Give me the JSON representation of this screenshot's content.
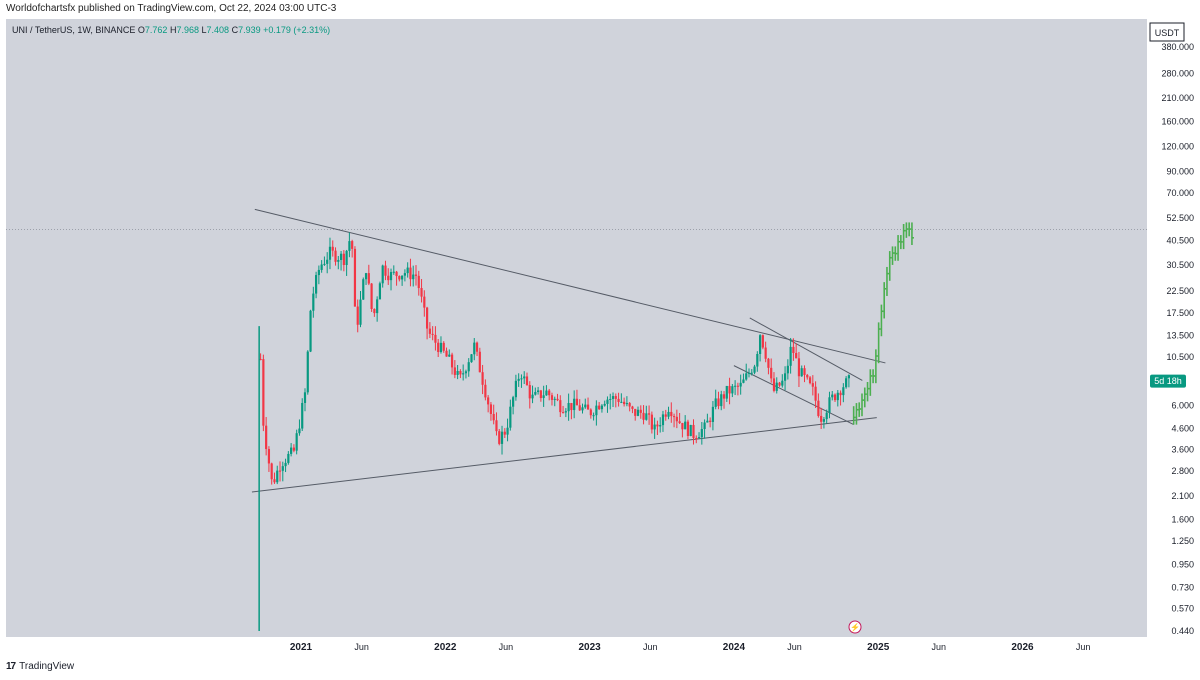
{
  "header": {
    "publisher_line": "Worldofchartsfx published on TradingView.com, Oct 22, 2024 03:00 UTC-3"
  },
  "legend": {
    "symbol": "UNI / TetherUS, 1W, BINANCE",
    "open_label": "O",
    "open": "7.762",
    "high_label": "H",
    "high": "7.968",
    "low_label": "L",
    "low": "7.408",
    "close_label": "C",
    "close": "7.939",
    "change": "+0.179 (+2.31%)"
  },
  "price_axis": {
    "currency": "USDT",
    "countdown_badge": "5d 18h"
  },
  "footer": {
    "brand": "TradingView",
    "logo_text": "17"
  },
  "colors": {
    "up": "#089981",
    "down": "#f23645",
    "projection": "#4caf50",
    "background": "#d0d3db",
    "trendline": "#555b66",
    "badge": "#089981"
  },
  "chart_data": {
    "type": "candlestick",
    "title": "UNI / TetherUS, 1W, BINANCE",
    "scale": "log",
    "ylim": [
      0.4,
      480
    ],
    "y_ticks": [
      "380.000",
      "280.000",
      "210.000",
      "160.000",
      "120.000",
      "90.000",
      "70.000",
      "52.500",
      "40.500",
      "30.500",
      "22.500",
      "17.500",
      "13.500",
      "10.500",
      "6.000",
      "4.600",
      "3.600",
      "2.800",
      "2.100",
      "1.600",
      "1.250",
      "0.950",
      "0.730",
      "0.570",
      "0.440"
    ],
    "x_ticks": [
      {
        "label": "2021",
        "t": 2021.0,
        "bold": true
      },
      {
        "label": "Jun",
        "t": 2021.42,
        "bold": false
      },
      {
        "label": "2022",
        "t": 2022.0,
        "bold": true
      },
      {
        "label": "Jun",
        "t": 2022.42,
        "bold": false
      },
      {
        "label": "2023",
        "t": 2023.0,
        "bold": true
      },
      {
        "label": "Jun",
        "t": 2023.42,
        "bold": false
      },
      {
        "label": "2024",
        "t": 2024.0,
        "bold": true
      },
      {
        "label": "Jun",
        "t": 2024.42,
        "bold": false
      },
      {
        "label": "2025",
        "t": 2025.0,
        "bold": true
      },
      {
        "label": "Jun",
        "t": 2025.42,
        "bold": false
      },
      {
        "label": "2026",
        "t": 2026.0,
        "bold": true
      },
      {
        "label": "Jun",
        "t": 2026.42,
        "bold": false
      }
    ],
    "price_path": [
      [
        2020.71,
        0.44
      ],
      [
        2020.71,
        15
      ],
      [
        2020.74,
        4.8
      ],
      [
        2020.8,
        2.4
      ],
      [
        2020.86,
        3.1
      ],
      [
        2020.95,
        3.5
      ],
      [
        2021.03,
        7
      ],
      [
        2021.07,
        20
      ],
      [
        2021.13,
        30
      ],
      [
        2021.2,
        35
      ],
      [
        2021.3,
        33
      ],
      [
        2021.35,
        44
      ],
      [
        2021.38,
        14
      ],
      [
        2021.45,
        30
      ],
      [
        2021.5,
        16
      ],
      [
        2021.56,
        30
      ],
      [
        2021.62,
        27
      ],
      [
        2021.72,
        28
      ],
      [
        2021.8,
        27
      ],
      [
        2021.88,
        14
      ],
      [
        2021.95,
        12
      ],
      [
        2022.03,
        10
      ],
      [
        2022.1,
        8
      ],
      [
        2022.2,
        12
      ],
      [
        2022.28,
        7
      ],
      [
        2022.36,
        4
      ],
      [
        2022.42,
        4.5
      ],
      [
        2022.48,
        7
      ],
      [
        2022.52,
        9
      ],
      [
        2022.6,
        6.5
      ],
      [
        2022.7,
        7
      ],
      [
        2022.8,
        6
      ],
      [
        2022.9,
        6
      ],
      [
        2023.0,
        5.5
      ],
      [
        2023.1,
        6.5
      ],
      [
        2023.2,
        6.5
      ],
      [
        2023.3,
        5.5
      ],
      [
        2023.38,
        5.5
      ],
      [
        2023.45,
        4.5
      ],
      [
        2023.55,
        6
      ],
      [
        2023.62,
        5
      ],
      [
        2023.72,
        4.3
      ],
      [
        2023.8,
        4.6
      ],
      [
        2023.87,
        6
      ],
      [
        2023.95,
        7
      ],
      [
        2024.05,
        7.5
      ],
      [
        2024.15,
        10
      ],
      [
        2024.18,
        14
      ],
      [
        2024.22,
        11
      ],
      [
        2024.27,
        7
      ],
      [
        2024.35,
        8
      ],
      [
        2024.4,
        12
      ],
      [
        2024.45,
        9
      ],
      [
        2024.55,
        7
      ],
      [
        2024.6,
        5.2
      ],
      [
        2024.68,
        6.5
      ],
      [
        2024.75,
        7.5
      ],
      [
        2024.8,
        7.939
      ]
    ],
    "projection_path": [
      [
        2024.83,
        5.5
      ],
      [
        2024.9,
        6.5
      ],
      [
        2024.97,
        9
      ],
      [
        2025.0,
        14
      ],
      [
        2025.04,
        22
      ],
      [
        2025.08,
        32
      ],
      [
        2025.13,
        38
      ],
      [
        2025.2,
        46
      ],
      [
        2025.24,
        40
      ]
    ],
    "trendlines": [
      {
        "name": "upper-descending",
        "from": [
          2020.68,
          58
        ],
        "to": [
          2025.05,
          9.8
        ]
      },
      {
        "name": "lower-ascending",
        "from": [
          2020.66,
          2.2
        ],
        "to": [
          2024.99,
          5.2
        ]
      },
      {
        "name": "wedge-upper",
        "from": [
          2024.11,
          16.5
        ],
        "to": [
          2024.89,
          8.0
        ]
      },
      {
        "name": "wedge-lower",
        "from": [
          2024.0,
          9.5
        ],
        "to": [
          2024.83,
          4.8
        ]
      }
    ],
    "horizontal_reference": 46,
    "current_price": 7.939
  }
}
